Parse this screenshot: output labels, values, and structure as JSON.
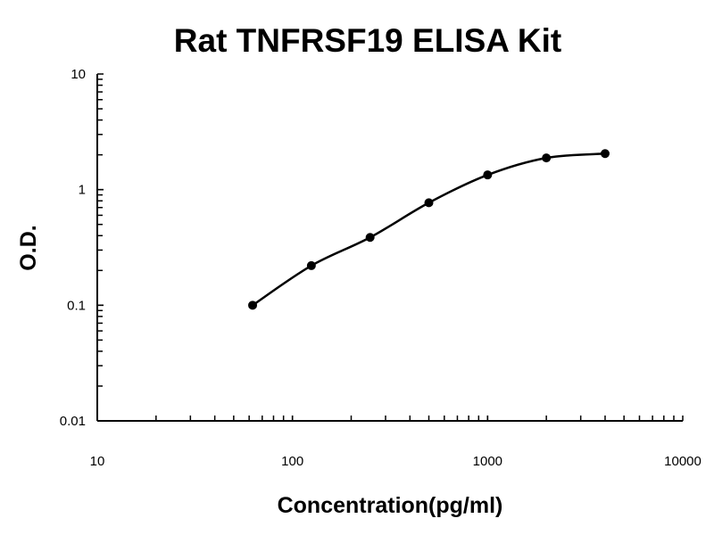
{
  "chart_data": {
    "type": "line",
    "title": "Rat TNFRSF19 ELISA Kit",
    "xlabel": "Concentration(pg/ml)",
    "ylabel": "O.D.",
    "x_scale": "log",
    "y_scale": "log",
    "xlim": [
      10,
      10000
    ],
    "ylim": [
      0.01,
      10
    ],
    "x_ticks": [
      "10",
      "100",
      "1000",
      "10000"
    ],
    "y_ticks": [
      "0.01",
      "0.1",
      "1",
      "10"
    ],
    "grid": false,
    "legend": "none",
    "series": [
      {
        "x": [
          62.5,
          125,
          250,
          500,
          1000,
          2000,
          4000
        ],
        "y": [
          0.1,
          0.22,
          0.386,
          0.77,
          1.34,
          1.88,
          2.05
        ],
        "color": "#000000",
        "marker": "circle",
        "smooth": true
      }
    ]
  }
}
